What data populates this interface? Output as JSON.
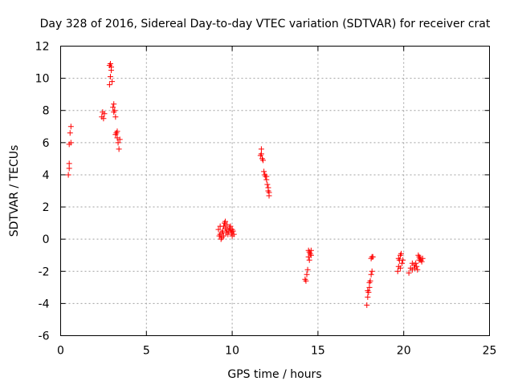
{
  "chart_data": {
    "type": "scatter",
    "title": "Day 328 of 2016, Sidereal Day-to-day VTEC variation (SDTVAR) for receiver crat",
    "xlabel": "GPS time / hours",
    "ylabel": "SDTVAR / TECUs",
    "xlim": [
      0,
      25
    ],
    "ylim": [
      -6,
      12
    ],
    "xticks": [
      0,
      5,
      10,
      15,
      20,
      25
    ],
    "yticks": [
      -6,
      -4,
      -2,
      0,
      2,
      4,
      6,
      8,
      10,
      12
    ],
    "grid": true,
    "marker": "+",
    "color": "#ff0000",
    "series": [
      {
        "name": "SDTVAR",
        "points": [
          [
            0.45,
            4.0
          ],
          [
            0.5,
            4.7
          ],
          [
            0.5,
            5.9
          ],
          [
            0.55,
            6.6
          ],
          [
            0.6,
            7.0
          ],
          [
            0.5,
            4.4
          ],
          [
            0.6,
            6.0
          ],
          [
            2.4,
            7.6
          ],
          [
            2.45,
            7.9
          ],
          [
            2.5,
            7.5
          ],
          [
            2.55,
            7.8
          ],
          [
            2.85,
            9.6
          ],
          [
            2.9,
            10.1
          ],
          [
            2.95,
            10.5
          ],
          [
            2.9,
            10.9
          ],
          [
            2.95,
            10.7
          ],
          [
            3.0,
            9.8
          ],
          [
            2.85,
            10.8
          ],
          [
            3.05,
            8.2
          ],
          [
            3.1,
            7.9
          ],
          [
            3.15,
            8.0
          ],
          [
            3.2,
            7.6
          ],
          [
            3.1,
            8.4
          ],
          [
            3.2,
            6.5
          ],
          [
            3.3,
            6.3
          ],
          [
            3.35,
            6.0
          ],
          [
            3.4,
            5.6
          ],
          [
            3.3,
            6.7
          ],
          [
            3.45,
            6.2
          ],
          [
            3.25,
            6.6
          ],
          [
            9.2,
            0.6
          ],
          [
            9.25,
            0.2
          ],
          [
            9.3,
            0.3
          ],
          [
            9.35,
            0.0
          ],
          [
            9.4,
            0.1
          ],
          [
            9.45,
            0.5
          ],
          [
            9.5,
            0.8
          ],
          [
            9.55,
            1.0
          ],
          [
            9.6,
            0.7
          ],
          [
            9.65,
            0.4
          ],
          [
            9.7,
            0.6
          ],
          [
            9.75,
            0.3
          ],
          [
            9.8,
            0.5
          ],
          [
            9.85,
            0.7
          ],
          [
            9.9,
            0.6
          ],
          [
            9.95,
            0.4
          ],
          [
            10.0,
            0.6
          ],
          [
            10.05,
            0.5
          ],
          [
            10.1,
            0.3
          ],
          [
            9.3,
            0.8
          ],
          [
            9.6,
            1.1
          ],
          [
            9.5,
            0.2
          ],
          [
            9.7,
            0.9
          ],
          [
            9.9,
            0.8
          ],
          [
            10.0,
            0.2
          ],
          [
            9.4,
            0.4
          ],
          [
            11.65,
            5.2
          ],
          [
            11.7,
            5.6
          ],
          [
            11.75,
            5.0
          ],
          [
            11.8,
            4.9
          ],
          [
            11.7,
            5.3
          ],
          [
            11.85,
            4.2
          ],
          [
            11.9,
            4.0
          ],
          [
            11.95,
            3.9
          ],
          [
            12.0,
            3.7
          ],
          [
            12.05,
            3.4
          ],
          [
            12.1,
            3.0
          ],
          [
            12.15,
            2.7
          ],
          [
            12.0,
            3.9
          ],
          [
            12.1,
            3.2
          ],
          [
            12.15,
            2.9
          ],
          [
            14.25,
            -2.5
          ],
          [
            14.3,
            -2.6
          ],
          [
            14.35,
            -2.2
          ],
          [
            14.4,
            -1.9
          ],
          [
            14.45,
            -1.1
          ],
          [
            14.5,
            -0.8
          ],
          [
            14.55,
            -0.9
          ],
          [
            14.6,
            -0.7
          ],
          [
            14.5,
            -1.3
          ],
          [
            14.45,
            -0.7
          ],
          [
            14.6,
            -1.0
          ],
          [
            17.85,
            -4.1
          ],
          [
            17.9,
            -3.6
          ],
          [
            17.95,
            -3.3
          ],
          [
            18.0,
            -3.0
          ],
          [
            18.05,
            -2.6
          ],
          [
            18.1,
            -2.2
          ],
          [
            18.15,
            -2.0
          ],
          [
            17.9,
            -3.2
          ],
          [
            18.0,
            -2.7
          ],
          [
            18.1,
            -1.2
          ],
          [
            18.15,
            -1.1
          ],
          [
            18.2,
            -1.1
          ],
          [
            19.65,
            -2.0
          ],
          [
            19.7,
            -1.7
          ],
          [
            19.75,
            -1.3
          ],
          [
            19.8,
            -1.0
          ],
          [
            19.85,
            -0.9
          ],
          [
            19.9,
            -1.5
          ],
          [
            19.95,
            -1.3
          ],
          [
            19.7,
            -1.2
          ],
          [
            19.8,
            -1.8
          ],
          [
            20.3,
            -2.1
          ],
          [
            20.4,
            -1.8
          ],
          [
            20.5,
            -1.9
          ],
          [
            20.6,
            -1.6
          ],
          [
            20.7,
            -1.5
          ],
          [
            20.75,
            -1.7
          ],
          [
            20.8,
            -1.9
          ],
          [
            20.5,
            -1.5
          ],
          [
            20.65,
            -1.8
          ],
          [
            20.85,
            -1.0
          ],
          [
            20.9,
            -1.1
          ],
          [
            20.95,
            -1.2
          ],
          [
            21.0,
            -1.3
          ],
          [
            21.05,
            -1.4
          ],
          [
            21.1,
            -1.2
          ],
          [
            20.9,
            -1.3
          ]
        ]
      }
    ]
  }
}
